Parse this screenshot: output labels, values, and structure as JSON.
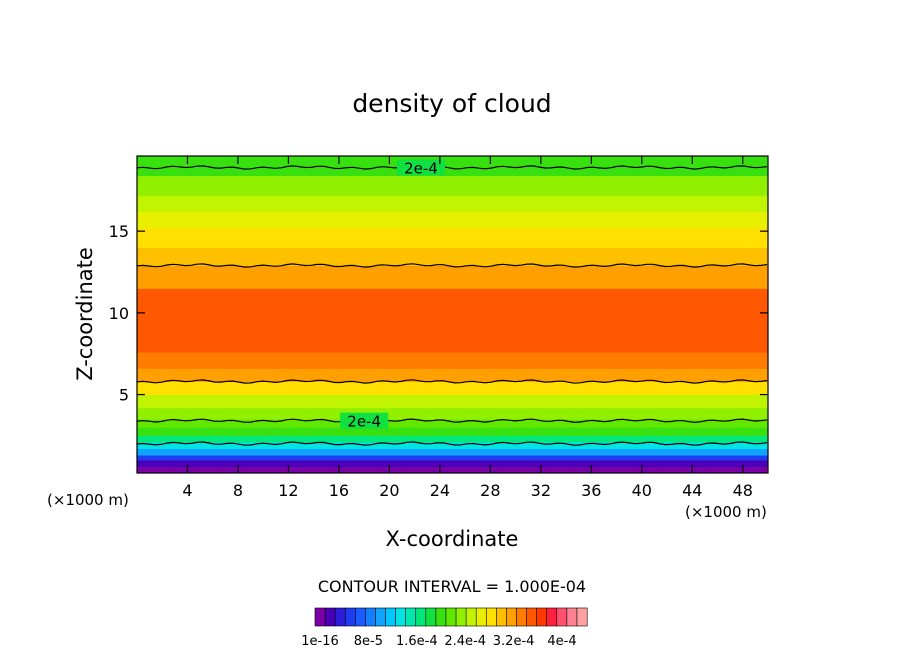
{
  "chart_data": {
    "type": "heatmap",
    "title": "density of cloud",
    "xlabel": "X-coordinate",
    "ylabel": "Z-coordinate",
    "x_unit_left": "(×1000 m)",
    "x_unit_right": "(×1000 m)",
    "xlim": [
      0,
      50
    ],
    "ylim": [
      0.2,
      19.6
    ],
    "x_ticks": [
      4,
      8,
      12,
      16,
      20,
      24,
      28,
      32,
      36,
      40,
      44,
      48
    ],
    "x_tick_labels": [
      "4",
      "8",
      "12",
      "16",
      "20",
      "24",
      "28",
      "32",
      "36",
      "40",
      "44",
      "48"
    ],
    "y_ticks": [
      5,
      10,
      15
    ],
    "y_tick_labels": [
      "5",
      "10",
      "15"
    ],
    "contour_interval_text": "CONTOUR INTERVAL = 1.000E-04",
    "contour_labels": [
      {
        "text": "2e-4",
        "x": 22.5,
        "y": 18.9
      },
      {
        "text": "2e-4",
        "x": 18.0,
        "y": 3.4
      }
    ],
    "colorbar": {
      "colors": [
        "#7b00a8",
        "#4a00b8",
        "#2c1cd8",
        "#1f3cf0",
        "#1a5cff",
        "#1480ff",
        "#10a4ff",
        "#00c8ff",
        "#00e4e4",
        "#00e8b0",
        "#00e87c",
        "#10e040",
        "#38e010",
        "#60e800",
        "#90f000",
        "#c0f400",
        "#e8f000",
        "#ffe000",
        "#ffc000",
        "#ffa000",
        "#ff7c00",
        "#ff5800",
        "#ff3800",
        "#ff2040",
        "#ff5070",
        "#ff8090",
        "#ffa0a0"
      ],
      "labels": [
        "1e-16",
        "8e-5",
        "1.6e-4",
        "2.4e-4",
        "3.2e-4",
        "4e-4"
      ]
    },
    "layers": [
      {
        "z0": 0.2,
        "z1": 0.6,
        "level": 0
      },
      {
        "z0": 0.6,
        "z1": 1.0,
        "level": 1
      },
      {
        "z0": 1.0,
        "z1": 1.3,
        "level": 3
      },
      {
        "z0": 1.3,
        "z1": 1.7,
        "level": 6
      },
      {
        "z0": 1.7,
        "z1": 2.1,
        "level": 8
      },
      {
        "z0": 2.1,
        "z1": 2.5,
        "level": 10
      },
      {
        "z0": 2.5,
        "z1": 3.0,
        "level": 12
      },
      {
        "z0": 3.0,
        "z1": 3.5,
        "level": 13
      },
      {
        "z0": 3.5,
        "z1": 4.2,
        "level": 14
      },
      {
        "z0": 4.2,
        "z1": 5.0,
        "level": 15
      },
      {
        "z0": 5.0,
        "z1": 5.8,
        "level": 17
      },
      {
        "z0": 5.8,
        "z1": 6.6,
        "level": 19
      },
      {
        "z0": 6.6,
        "z1": 7.6,
        "level": 20
      },
      {
        "z0": 7.6,
        "z1": 11.5,
        "level": 21
      },
      {
        "z0": 11.5,
        "z1": 12.9,
        "level": 19
      },
      {
        "z0": 12.9,
        "z1": 14.0,
        "level": 18
      },
      {
        "z0": 14.0,
        "z1": 15.2,
        "level": 17
      },
      {
        "z0": 15.2,
        "z1": 16.2,
        "level": 16
      },
      {
        "z0": 16.2,
        "z1": 17.2,
        "level": 15
      },
      {
        "z0": 17.2,
        "z1": 18.4,
        "level": 14
      },
      {
        "z0": 18.4,
        "z1": 19.6,
        "level": 12
      }
    ],
    "contour_lines": [
      {
        "name": "upper",
        "z": 18.9
      },
      {
        "name": "top-of-core",
        "z": 12.9
      },
      {
        "name": "bottom-of-core",
        "z": 5.8
      },
      {
        "name": "lower",
        "z": 3.4
      },
      {
        "name": "base",
        "z": 2.0
      }
    ],
    "grid": false
  }
}
